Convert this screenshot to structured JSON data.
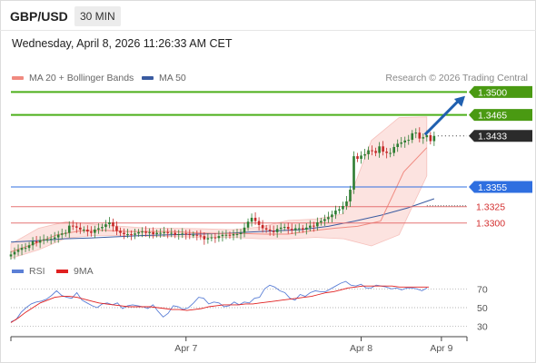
{
  "header": {
    "symbol": "GBP/USD",
    "timeframe": "30 MIN",
    "timestamp": "Wednesday, April 8, 2026 11:26:33 AM CET"
  },
  "legend": {
    "ma20_label": "MA 20 + Bollinger Bands",
    "ma20_color": "#f08a80",
    "ma50_label": "MA 50",
    "ma50_color": "#3a5ba0",
    "credit": "Research © 2026 Trading Central"
  },
  "rsi_legend": {
    "rsi_label": "RSI",
    "rsi_color": "#5b7fd6",
    "ma_label": "9MA",
    "ma_color": "#e02020"
  },
  "colors": {
    "up": "#2e7d32",
    "down": "#c62828",
    "resistance": "#4caf1a",
    "pivot": "#2f6fe0",
    "support": "#e57373",
    "arrow": "#2060b0"
  },
  "chart_data": [
    {
      "type": "candlestick",
      "title": "GBP/USD 30 MIN",
      "xlim": [
        0,
        125
      ],
      "ylim": [
        1.3247,
        1.3513
      ],
      "x_ticks": [
        {
          "x": 48,
          "label": "Apr 7"
        },
        {
          "x": 96,
          "label": "Apr 8"
        },
        {
          "x": 118,
          "label": "Apr 9"
        }
      ],
      "levels": [
        {
          "value": 1.35,
          "label": "1.3500",
          "kind": "resistance",
          "badge": true
        },
        {
          "value": 1.3465,
          "label": "1.3465",
          "kind": "resistance",
          "badge": true
        },
        {
          "value": 1.3433,
          "label": "1.3433",
          "kind": "last",
          "badge": true
        },
        {
          "value": 1.3355,
          "label": "1.3355",
          "kind": "pivot",
          "badge": true
        },
        {
          "value": 1.3325,
          "label": "1.3325",
          "kind": "support",
          "badge": false
        },
        {
          "value": 1.33,
          "label": "1.3300",
          "kind": "support",
          "badge": false
        }
      ],
      "projection": {
        "from": [
          113.5,
          1.3435
        ],
        "to": [
          124.5,
          1.3494
        ]
      },
      "close": [
        1.3252,
        1.3256,
        1.3259,
        1.3262,
        1.3262,
        1.3266,
        1.3272,
        1.327,
        1.3274,
        1.3275,
        1.3275,
        1.3276,
        1.3278,
        1.3282,
        1.3284,
        1.3285,
        1.3296,
        1.3295,
        1.3293,
        1.329,
        1.329,
        1.3287,
        1.3285,
        1.329,
        1.3292,
        1.3294,
        1.3298,
        1.3301,
        1.3295,
        1.3288,
        1.3285,
        1.3283,
        1.3283,
        1.3282,
        1.3284,
        1.3286,
        1.3287,
        1.3285,
        1.3286,
        1.3283,
        1.3285,
        1.3285,
        1.3286,
        1.3285,
        1.3285,
        1.3282,
        1.3283,
        1.3284,
        1.3283,
        1.3282,
        1.3282,
        1.3281,
        1.328,
        1.3275,
        1.3277,
        1.3278,
        1.3277,
        1.328,
        1.3282,
        1.3282,
        1.3281,
        1.3283,
        1.3283,
        1.3285,
        1.3293,
        1.3302,
        1.3308,
        1.3303,
        1.3297,
        1.3292,
        1.329,
        1.3288,
        1.3286,
        1.3291,
        1.3293,
        1.3294,
        1.3291,
        1.3289,
        1.3292,
        1.3292,
        1.329,
        1.3293,
        1.3296,
        1.3295,
        1.3301,
        1.3303,
        1.3306,
        1.3309,
        1.3313,
        1.3319,
        1.3321,
        1.3326,
        1.3333,
        1.3351,
        1.3402,
        1.3398,
        1.3403,
        1.3405,
        1.3411,
        1.341,
        1.3407,
        1.3417,
        1.3409,
        1.3407,
        1.3407,
        1.3416,
        1.3421,
        1.3423,
        1.3426,
        1.3427,
        1.3437,
        1.3438,
        1.3429,
        1.3431,
        1.3434,
        1.3425,
        1.3433
      ],
      "ma20": [
        1.3256,
        1.3268,
        1.3282,
        1.3288,
        1.3289,
        1.3287,
        1.3287,
        1.3287,
        1.3285,
        1.3284,
        1.3284,
        1.3283,
        1.3283,
        1.3288,
        1.3292,
        1.3295,
        1.3303,
        1.3378,
        1.3415
      ],
      "ma50": [
        1.3271,
        1.3273,
        1.3276,
        1.3277,
        1.3279,
        1.3281,
        1.3282,
        1.3283,
        1.3284,
        1.3286,
        1.3288,
        1.329,
        1.3295,
        1.3303,
        1.3312,
        1.3323,
        1.3337
      ],
      "bb_upper": [
        1.3268,
        1.3292,
        1.3302,
        1.3298,
        1.3295,
        1.3292,
        1.3292,
        1.3291,
        1.329,
        1.3294,
        1.3304,
        1.3306,
        1.3314,
        1.3426,
        1.3461,
        1.3462
      ],
      "bb_lower": [
        1.3246,
        1.3259,
        1.3277,
        1.3281,
        1.3281,
        1.328,
        1.3279,
        1.3278,
        1.3278,
        1.3276,
        1.3276,
        1.3278,
        1.3276,
        1.3265,
        1.3282,
        1.3372
      ]
    },
    {
      "type": "line",
      "title": "RSI",
      "ylim": [
        20,
        80
      ],
      "y_ticks": [
        30,
        50,
        70
      ],
      "series": [
        {
          "name": "RSI",
          "values": [
            35,
            37,
            45,
            50,
            54,
            56,
            57,
            59,
            63,
            68,
            63,
            61,
            60,
            66,
            58,
            55,
            52,
            50,
            54,
            55,
            53,
            55,
            49,
            52,
            53,
            52,
            51,
            49,
            53,
            46,
            40,
            44,
            52,
            51,
            48,
            50,
            55,
            61,
            60,
            54,
            56,
            55,
            51,
            52,
            56,
            53,
            56,
            55,
            60,
            61,
            70,
            74,
            72,
            68,
            66,
            60,
            58,
            64,
            62,
            66,
            68,
            67,
            67,
            70,
            73,
            76,
            78,
            74,
            73,
            75,
            71,
            71,
            74,
            73,
            72,
            70,
            71,
            69,
            71,
            71,
            70,
            68,
            71
          ]
        },
        {
          "name": "9MA",
          "values": [
            34,
            39,
            45,
            50,
            55,
            58,
            61,
            62,
            62,
            61,
            59,
            57,
            55,
            54,
            53,
            52,
            51,
            51,
            51,
            51,
            50,
            49,
            48,
            48,
            47,
            48,
            49,
            51,
            52,
            53,
            53,
            53,
            54,
            54,
            55,
            56,
            57,
            58,
            59,
            60,
            61,
            62,
            64,
            66,
            67,
            69,
            71,
            72,
            73,
            73,
            73,
            73,
            73,
            72,
            72,
            72,
            72,
            72
          ]
        }
      ]
    }
  ]
}
